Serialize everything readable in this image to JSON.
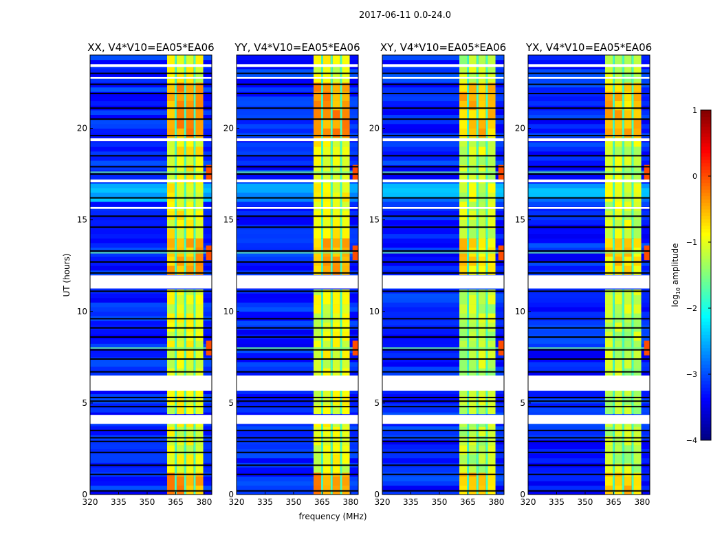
{
  "chart_data": {
    "type": "heatmap",
    "suptitle": "2017-06-11 0.0-24.0",
    "xlabel": "frequency (MHz)",
    "ylabel": "UT (hours)",
    "xlim": [
      320,
      384
    ],
    "ylim": [
      0,
      24
    ],
    "xticks": [
      320,
      335,
      350,
      365,
      380
    ],
    "yticks": [
      0,
      5,
      10,
      15,
      20
    ],
    "panels": [
      {
        "title": "XX, V4*V10=EA05*EA06"
      },
      {
        "title": "YY, V4*V10=EA05*EA06"
      },
      {
        "title": "XY, V4*V10=EA05*EA06"
      },
      {
        "title": "YX, V4*V10=EA05*EA06"
      }
    ],
    "colorbar": {
      "label": "log10 amplitude",
      "label_main": "log",
      "label_sub": "10",
      "label_tail": " amplitude",
      "range": [
        -4,
        1
      ],
      "ticks": [
        "1",
        "0",
        "−1",
        "−2",
        "−3",
        "−4"
      ],
      "colormap": "jet"
    },
    "background_level": -3.2,
    "bright_subbands_mhz": [
      [
        360.5,
        364.5
      ],
      [
        365.5,
        369.5
      ],
      [
        370.5,
        374.5
      ],
      [
        375.5,
        379.5
      ]
    ],
    "subband_levels": [
      {
        "t": [
          0,
          1.2
        ],
        "level": -0.4
      },
      {
        "t": [
          1.2,
          4
        ],
        "level": -1.0
      },
      {
        "t": [
          4.4,
          11.2
        ],
        "level": -1.0
      },
      {
        "t": [
          12,
          14
        ],
        "level": -0.5
      },
      {
        "t": [
          14,
          19.5
        ],
        "level": -0.9
      },
      {
        "t": [
          19.5,
          22.5
        ],
        "level": -0.4
      },
      {
        "t": [
          22.5,
          24
        ],
        "level": -1.0
      }
    ],
    "flagged_hours": [
      [
        11.25,
        11.97
      ],
      [
        3.86,
        4.35
      ],
      [
        5.67,
        6.5
      ],
      [
        23.35,
        23.5
      ],
      [
        22.7,
        22.8
      ],
      [
        19.3,
        19.45
      ],
      [
        17.05,
        17.2
      ],
      [
        15.6,
        15.7
      ]
    ],
    "gap_lines_hours": [
      0.2,
      1.1,
      1.6,
      2.3,
      2.9,
      3.1,
      3.5,
      4.8,
      5.1,
      5.3,
      6.7,
      7.4,
      7.9,
      8.6,
      9.1,
      9.6,
      11.1,
      12.1,
      12.7,
      13.3,
      14.6,
      15.2,
      16.2,
      17.5,
      17.9,
      18.5,
      19.6,
      20.5,
      21.1,
      21.9,
      22.4,
      23.0
    ],
    "rfi_hours": [
      17.6,
      13.2,
      8.0
    ]
  }
}
